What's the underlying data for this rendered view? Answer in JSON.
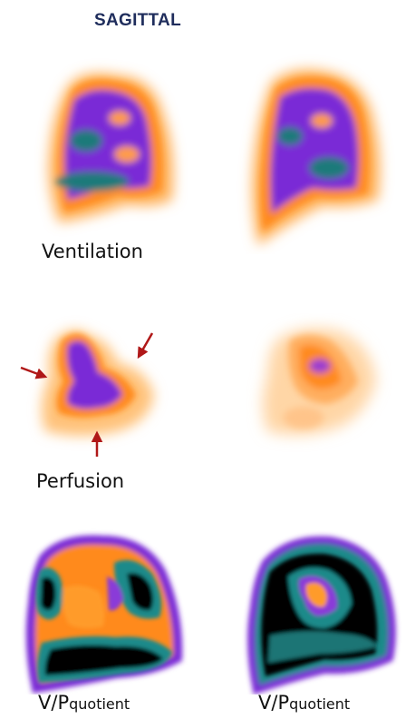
{
  "title": "SAGITTAL",
  "rows": [
    {
      "label": "Ventilation"
    },
    {
      "label": "Perfusion"
    },
    {
      "label_main": "V/P",
      "label_sub": "quotient"
    }
  ],
  "colors": {
    "title": "#1f2d5c",
    "arrow": "#b01818",
    "hot_orange": "#ff8a1a",
    "mid_purple": "#7a2ad6",
    "core_teal": "#1f7a7a",
    "black_core": "#050505"
  }
}
